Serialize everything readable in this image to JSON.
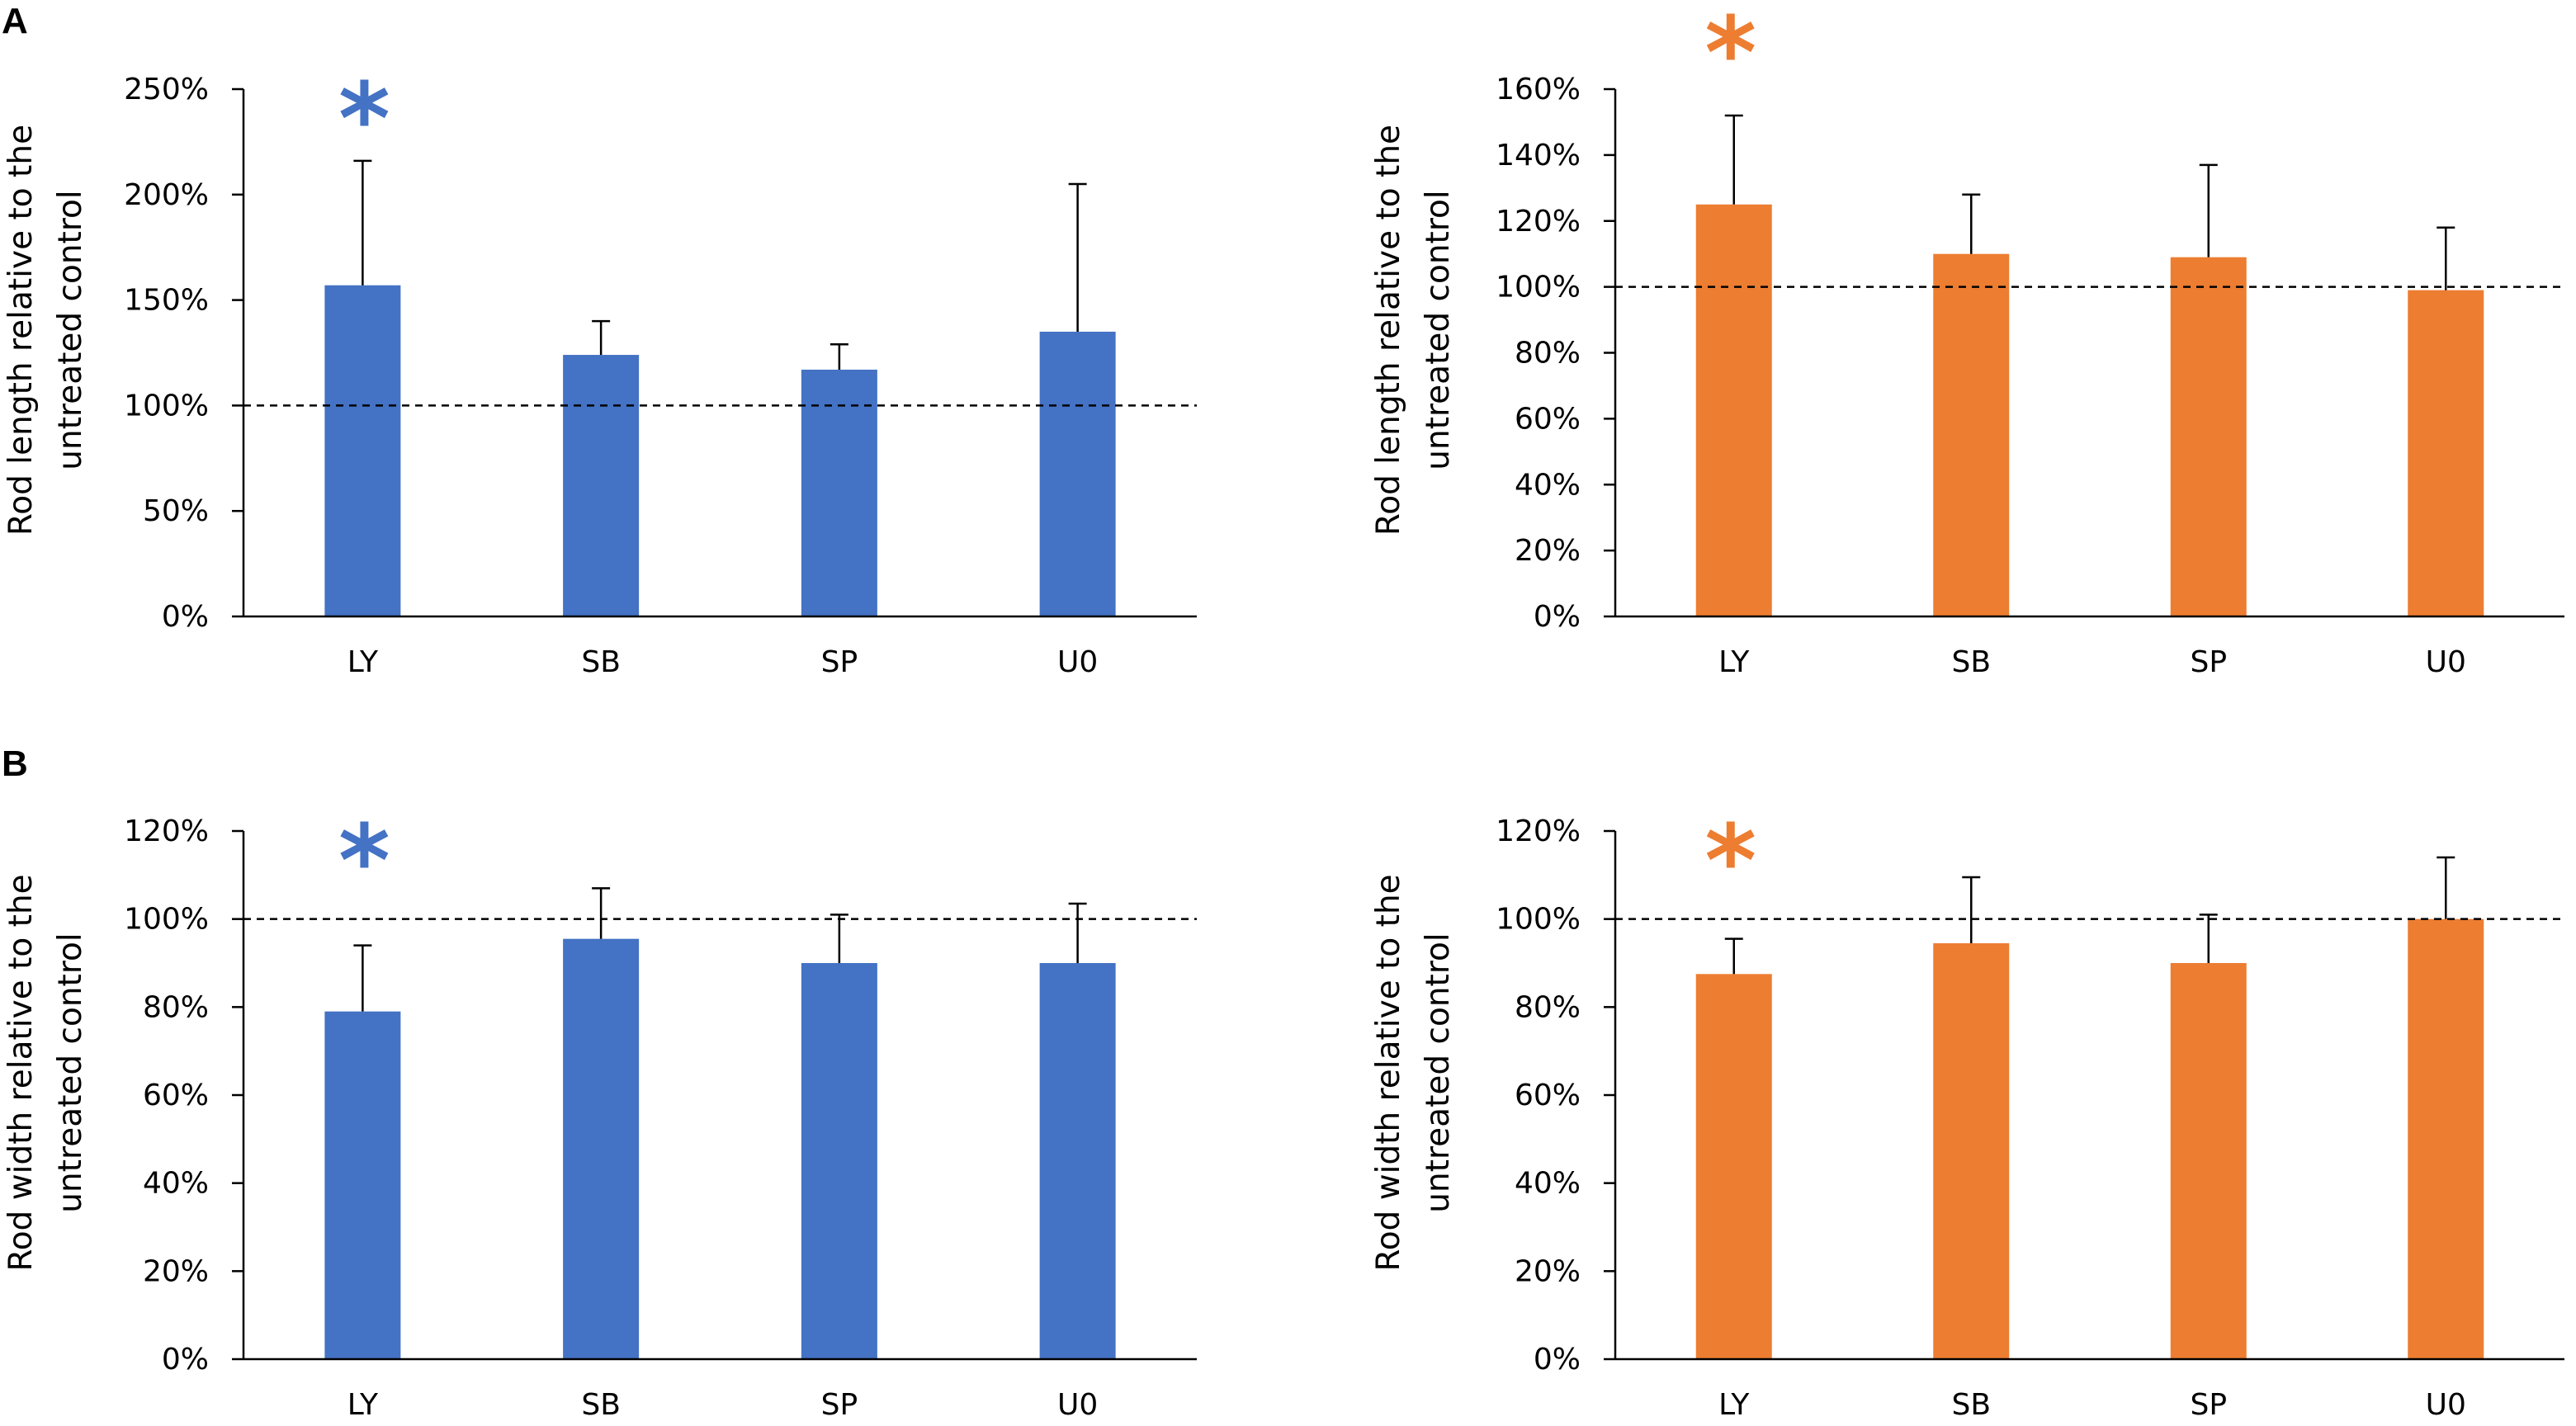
{
  "panels": [
    {
      "letter": "A"
    },
    {
      "letter": "B"
    }
  ],
  "chart_data": [
    {
      "type": "bar",
      "panel": "A",
      "title": "",
      "xlabel": "",
      "ylabel_lines": [
        "Rod length relative to the",
        "untreated control"
      ],
      "categories": [
        "LY",
        "SB",
        "SP",
        "U0"
      ],
      "values": [
        157,
        124,
        117,
        135
      ],
      "errors": [
        59,
        16,
        12,
        70
      ],
      "ylim": [
        0,
        250
      ],
      "ytick_values": [
        0,
        50,
        100,
        150,
        200,
        250
      ],
      "yticks": [
        "0%",
        "50%",
        "100%",
        "150%",
        "200%",
        "250%"
      ],
      "reference_line": 100,
      "color": "#4472C4",
      "significance": [
        {
          "category": "LY",
          "symbol": "*"
        }
      ]
    },
    {
      "type": "bar",
      "panel": "A",
      "title": "",
      "xlabel": "",
      "ylabel_lines": [
        "Rod length relative to the",
        "untreated control"
      ],
      "categories": [
        "LY",
        "SB",
        "SP",
        "U0"
      ],
      "values": [
        125,
        110,
        109,
        99
      ],
      "errors": [
        27,
        18,
        28,
        19
      ],
      "ylim": [
        0,
        160
      ],
      "ytick_values": [
        0,
        20,
        40,
        60,
        80,
        100,
        120,
        140,
        160
      ],
      "yticks": [
        "0%",
        "20%",
        "40%",
        "60%",
        "80%",
        "100%",
        "120%",
        "140%",
        "160%"
      ],
      "reference_line": 100,
      "color": "#ED7D31",
      "significance": [
        {
          "category": "LY",
          "symbol": "*"
        }
      ]
    },
    {
      "type": "bar",
      "panel": "B",
      "title": "",
      "xlabel": "",
      "ylabel_lines": [
        "Rod width relative to the",
        "untreated control"
      ],
      "categories": [
        "LY",
        "SB",
        "SP",
        "U0"
      ],
      "values": [
        79,
        95.5,
        90,
        90
      ],
      "errors": [
        15,
        11.5,
        11,
        13.5
      ],
      "ylim": [
        0,
        120
      ],
      "ytick_values": [
        0,
        20,
        40,
        60,
        80,
        100,
        120
      ],
      "yticks": [
        "0%",
        "20%",
        "40%",
        "60%",
        "80%",
        "100%",
        "120%"
      ],
      "reference_line": 100,
      "color": "#4472C4",
      "significance": [
        {
          "category": "LY",
          "symbol": "*"
        }
      ]
    },
    {
      "type": "bar",
      "panel": "B",
      "title": "",
      "xlabel": "",
      "ylabel_lines": [
        "Rod width relative to the",
        "untreated control"
      ],
      "categories": [
        "LY",
        "SB",
        "SP",
        "U0"
      ],
      "values": [
        87.5,
        94.5,
        90,
        100
      ],
      "errors": [
        8,
        15,
        11,
        14
      ],
      "ylim": [
        0,
        120
      ],
      "ytick_values": [
        0,
        20,
        40,
        60,
        80,
        100,
        120
      ],
      "yticks": [
        "0%",
        "20%",
        "40%",
        "60%",
        "80%",
        "100%",
        "120%"
      ],
      "reference_line": 100,
      "color": "#ED7D31",
      "significance": [
        {
          "category": "LY",
          "symbol": "*"
        }
      ]
    }
  ]
}
